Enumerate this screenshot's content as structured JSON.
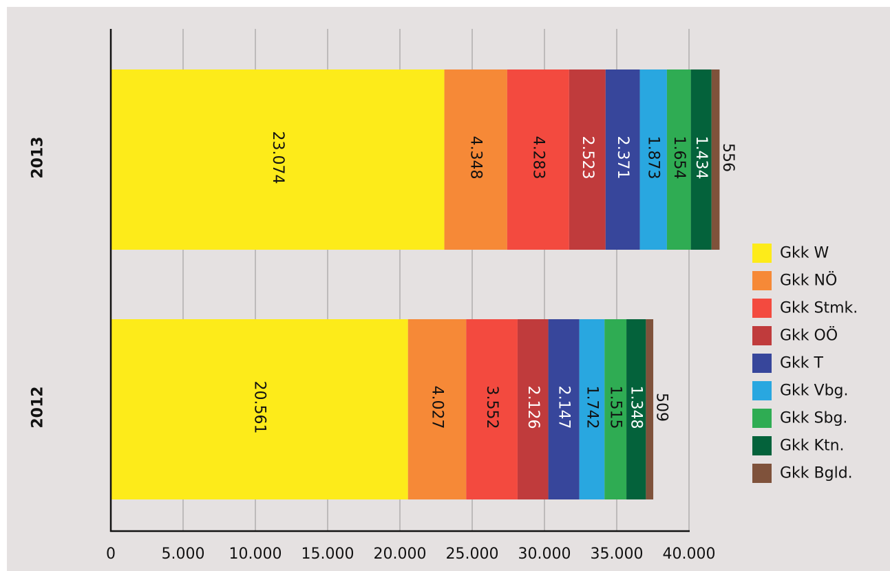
{
  "chart_data": {
    "type": "bar",
    "orientation": "horizontal",
    "stacked": true,
    "categories": [
      "2013",
      "2012"
    ],
    "series": [
      {
        "name": "Gkk W",
        "values": [
          23074,
          20561
        ],
        "color": "#fdeb1a",
        "label_color": "#111111",
        "labels": [
          "23.074",
          "20.561"
        ]
      },
      {
        "name": "Gkk NÖ",
        "values": [
          4348,
          4027
        ],
        "color": "#f68937",
        "label_color": "#111111",
        "labels": [
          "4.348",
          "4.027"
        ]
      },
      {
        "name": "Gkk Stmk.",
        "values": [
          4283,
          3552
        ],
        "color": "#f34a3f",
        "label_color": "#111111",
        "labels": [
          "4.283",
          "3.552"
        ]
      },
      {
        "name": "Gkk OÖ",
        "values": [
          2523,
          2126
        ],
        "color": "#c03b3c",
        "label_color": "#ffffff",
        "labels": [
          "2.523",
          "2.126"
        ]
      },
      {
        "name": "Gkk T",
        "values": [
          2371,
          2147
        ],
        "color": "#37469b",
        "label_color": "#ffffff",
        "labels": [
          "2.371",
          "2.147"
        ]
      },
      {
        "name": "Gkk Vbg.",
        "values": [
          1873,
          1742
        ],
        "color": "#29a7e0",
        "label_color": "#111111",
        "labels": [
          "1.873",
          "1.742"
        ]
      },
      {
        "name": "Gkk Sbg.",
        "values": [
          1654,
          1515
        ],
        "color": "#2fac53",
        "label_color": "#111111",
        "labels": [
          "1.654",
          "1.515"
        ]
      },
      {
        "name": "Gkk Ktn.",
        "values": [
          1434,
          1348
        ],
        "color": "#04623b",
        "label_color": "#ffffff",
        "labels": [
          "1.434",
          "1.348"
        ]
      },
      {
        "name": "Gkk Bgld.",
        "values": [
          556,
          509
        ],
        "color": "#7f523b",
        "label_color": "#111111",
        "labels": [
          "556",
          "509"
        ]
      }
    ],
    "xlim": [
      0,
      40000
    ],
    "xticks": [
      0,
      5000,
      10000,
      15000,
      20000,
      25000,
      30000,
      35000,
      40000
    ],
    "xtick_labels": [
      "0",
      "5.000",
      "10.000",
      "15.000",
      "20.000",
      "25.000",
      "30.000",
      "35.000",
      "40.000"
    ],
    "grid": true,
    "legend_position": "right"
  }
}
